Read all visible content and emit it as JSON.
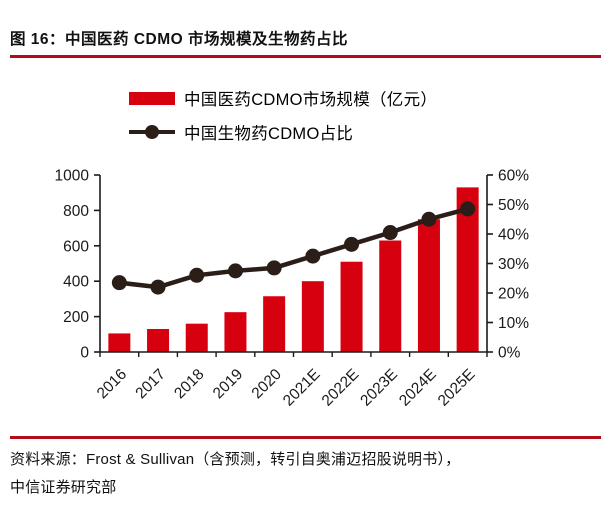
{
  "header": {
    "title": "图 16：中国医药 CDMO 市场规模及生物药占比"
  },
  "legend": {
    "bar_label": "中国医药CDMO市场规模（亿元）",
    "line_label": "中国生物药CDMO占比"
  },
  "chart_data": {
    "type": "bar",
    "subtype": "bar+line dual-axis",
    "categories": [
      "2016",
      "2017",
      "2018",
      "2019",
      "2020",
      "2021E",
      "2022E",
      "2023E",
      "2024E",
      "2025E"
    ],
    "series": [
      {
        "name": "中国医药CDMO市场规模（亿元）",
        "type": "bar",
        "axis": "left",
        "color": "#d7000f",
        "values": [
          105,
          130,
          160,
          225,
          315,
          400,
          510,
          630,
          750,
          930
        ]
      },
      {
        "name": "中国生物药CDMO占比",
        "type": "line",
        "axis": "right",
        "color": "#2b1d17",
        "values": [
          23.5,
          22,
          26,
          27.5,
          28.5,
          32.5,
          36.5,
          40.5,
          45,
          48.5
        ]
      }
    ],
    "left_axis": {
      "min": 0,
      "max": 1000,
      "step": 200,
      "ticks": [
        "0",
        "200",
        "400",
        "600",
        "800",
        "1000"
      ]
    },
    "right_axis": {
      "min": 0,
      "max": 60,
      "step": 10,
      "ticks": [
        "0%",
        "10%",
        "20%",
        "30%",
        "40%",
        "50%",
        "60%"
      ]
    },
    "grid": "off",
    "legend_position": "top-left"
  },
  "footer": {
    "source_line1": "资料来源：Frost & Sullivan（含预测，转引自奥浦迈招股说明书），",
    "source_line2": "中信证券研究部"
  },
  "colors": {
    "bar_red": "#d7000f",
    "line_dark": "#2b1d17",
    "rule_red": "#b20b1a",
    "axis_black": "#1a1a1a"
  }
}
